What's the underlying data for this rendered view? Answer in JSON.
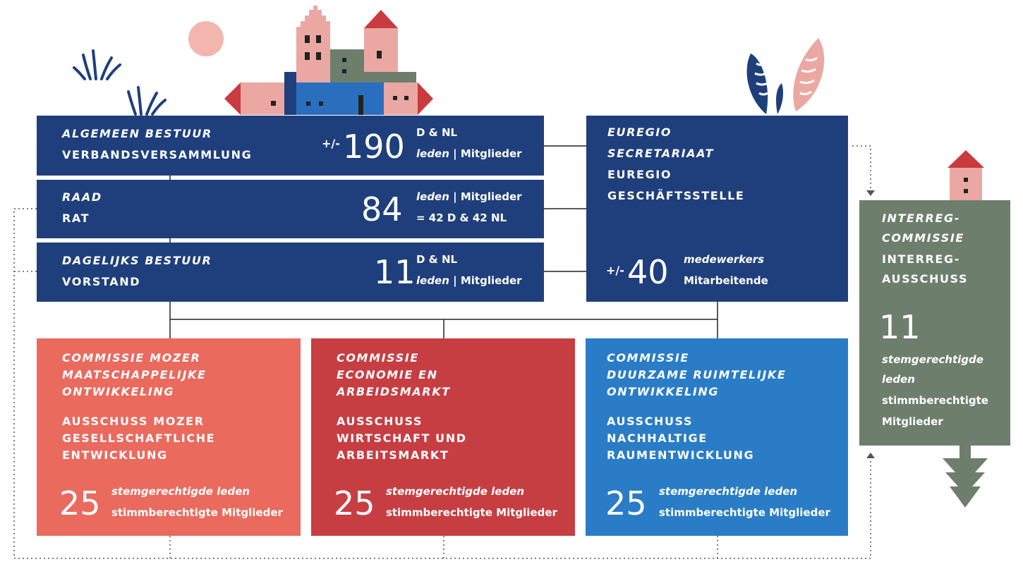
{
  "governance": {
    "algemeen": {
      "title_nl": "ALGEMEEN BESTUUR",
      "title_de": "VERBANDSVERSAMMLUNG",
      "prefix": "+/-",
      "count": "190",
      "detail_1": "D & NL",
      "detail_2_nl": "leden",
      "detail_2_sep": " | ",
      "detail_2_de": "Mitglieder"
    },
    "raad": {
      "title_nl": "RAAD",
      "title_de": "RAT",
      "count": "84",
      "detail_1_nl": "leden",
      "detail_1_sep": " | ",
      "detail_1_de": "Mitglieder",
      "detail_2": "= 42 D & 42 NL"
    },
    "dagelijks": {
      "title_nl": "DAGELIJKS BESTUUR",
      "title_de": "VORSTAND",
      "count": "11",
      "detail_1": "D & NL",
      "detail_2_nl": "leden",
      "detail_2_sep": " | ",
      "detail_2_de": "Mitglieder"
    }
  },
  "secretariat": {
    "line_1": "EUREGIO",
    "line_2": "SECRETARIAAT",
    "line_3": "EUREGIO",
    "line_4": "GESCHÄFTSSTELLE",
    "prefix": "+/-",
    "count": "40",
    "staff_nl": "medewerkers",
    "staff_de": "Mitarbeitende"
  },
  "commissions": [
    {
      "title_nl": [
        "COMMISSIE MOZER",
        "MAATSCHAPPELIJKE",
        "ONTWIKKELING"
      ],
      "title_de": [
        "AUSSCHUSS MOZER",
        "GESELLSCHAFTLICHE",
        "ENTWICKLUNG"
      ],
      "count": "25",
      "members_nl": "stemgerechtigde leden",
      "members_de": "stimmberechtigte Mitglieder"
    },
    {
      "title_nl": [
        "COMMISSIE",
        "ECONOMIE EN",
        "ARBEIDSMARKT"
      ],
      "title_de": [
        "AUSSCHUSS",
        "WIRTSCHAFT UND",
        "ARBEITSMARKT"
      ],
      "count": "25",
      "members_nl": "stemgerechtigde leden",
      "members_de": "stimmberechtigte Mitglieder"
    },
    {
      "title_nl": [
        "COMMISSIE",
        "DUURZAME RUIMTELIJKE",
        "ONTWIKKELING"
      ],
      "title_de": [
        "AUSSCHUSS",
        "NACHHALTIGE",
        "RAUMENTWICKLUNG"
      ],
      "count": "25",
      "members_nl": "stemgerechtigde leden",
      "members_de": "stimmberechtigte Mitglieder"
    }
  ],
  "interreg": {
    "title_nl_1": "INTERREG-",
    "title_nl_2": "COMMISSIE",
    "title_de_1": "INTERREG-",
    "title_de_2": "AUSSCHUSS",
    "count": "11",
    "members_nl_1": "stemgerechtigde",
    "members_nl_2": "leden",
    "members_de_1": "stimmberechtigte",
    "members_de_2": "Mitglieder"
  },
  "colors": {
    "navy": "#1f3f7c",
    "salmon": "#ea6a5e",
    "red": "#c73e42",
    "blue": "#2a7cc6",
    "grey_green": "#6d7f6c",
    "pink": "#eba8a3",
    "roof_red": "#c93b3e"
  }
}
